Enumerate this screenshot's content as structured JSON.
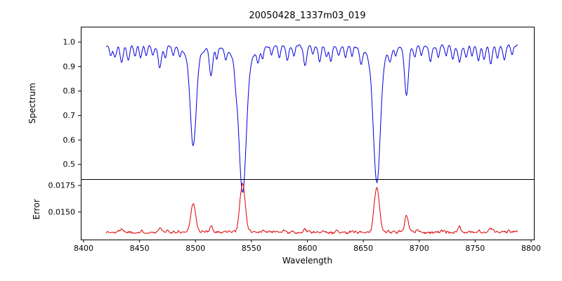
{
  "chart_data": [
    {
      "type": "line",
      "panel": "spectrum",
      "title": "20050428_1337m03_019",
      "xlabel": "Wavelength",
      "ylabel": "Spectrum",
      "xlim": [
        8397.5,
        8802.5
      ],
      "ylim": [
        0.44,
        1.063
      ],
      "xticks": [
        8400,
        8450,
        8500,
        8550,
        8600,
        8650,
        8700,
        8750,
        8800
      ],
      "xtick_labels": [
        "8400",
        "8450",
        "8500",
        "8550",
        "8600",
        "8650",
        "8700",
        "8750",
        "8800"
      ],
      "yticks": [
        0.5,
        0.6,
        0.7,
        0.8,
        0.9,
        1.0
      ],
      "ytick_labels": [
        "0.5",
        "0.6",
        "0.7",
        "0.8",
        "0.9",
        "1.0"
      ],
      "line_color": "#0000dd",
      "x_start": 8420,
      "x_end": 8788,
      "n_points": 560,
      "continuum": 0.985,
      "noise_amplitude": 0.009,
      "seed": 20050428,
      "absorption_lines": [
        [
          8498.0,
          0.36,
          2.6
        ],
        [
          8498.0,
          0.05,
          7.0
        ],
        [
          8542.1,
          0.53,
          3.2
        ],
        [
          8542.1,
          0.07,
          9.0
        ],
        [
          8662.1,
          0.5,
          3.0
        ],
        [
          8662.1,
          0.06,
          8.0
        ],
        [
          8688.6,
          0.21,
          1.7
        ],
        [
          8424,
          0.04,
          1.1
        ],
        [
          8428,
          0.05,
          1.2
        ],
        [
          8434,
          0.07,
          1.3
        ],
        [
          8440,
          0.06,
          1.2
        ],
        [
          8446,
          0.04,
          1.0
        ],
        [
          8451,
          0.05,
          1.1
        ],
        [
          8456,
          0.04,
          1.0
        ],
        [
          8462,
          0.04,
          1.0
        ],
        [
          8468,
          0.09,
          1.4
        ],
        [
          8473,
          0.05,
          1.1
        ],
        [
          8480,
          0.04,
          1.0
        ],
        [
          8486,
          0.03,
          1.0
        ],
        [
          8514,
          0.12,
          1.5
        ],
        [
          8519,
          0.05,
          1.0
        ],
        [
          8527,
          0.04,
          1.0
        ],
        [
          8536,
          0.05,
          1.1
        ],
        [
          8556,
          0.05,
          1.1
        ],
        [
          8560,
          0.04,
          1.0
        ],
        [
          8568,
          0.04,
          1.0
        ],
        [
          8575,
          0.05,
          1.1
        ],
        [
          8582,
          0.06,
          1.2
        ],
        [
          8588,
          0.05,
          1.1
        ],
        [
          8598,
          0.08,
          1.4
        ],
        [
          8605,
          0.04,
          1.0
        ],
        [
          8611,
          0.06,
          1.2
        ],
        [
          8617,
          0.05,
          1.1
        ],
        [
          8621,
          0.06,
          1.2
        ],
        [
          8628,
          0.04,
          1.0
        ],
        [
          8634,
          0.05,
          1.1
        ],
        [
          8640,
          0.04,
          1.0
        ],
        [
          8648,
          0.07,
          1.3
        ],
        [
          8674,
          0.05,
          1.1
        ],
        [
          8679,
          0.04,
          1.0
        ],
        [
          8696,
          0.05,
          1.1
        ],
        [
          8702,
          0.04,
          1.0
        ],
        [
          8710,
          0.06,
          1.2
        ],
        [
          8717,
          0.05,
          1.1
        ],
        [
          8724,
          0.04,
          1.0
        ],
        [
          8730,
          0.05,
          1.1
        ],
        [
          8736,
          0.07,
          1.3
        ],
        [
          8742,
          0.05,
          1.1
        ],
        [
          8747,
          0.04,
          1.0
        ],
        [
          8753,
          0.06,
          1.2
        ],
        [
          8758,
          0.05,
          1.1
        ],
        [
          8764,
          0.07,
          1.3
        ],
        [
          8770,
          0.05,
          1.1
        ],
        [
          8776,
          0.06,
          1.2
        ],
        [
          8783,
          0.04,
          1.0
        ]
      ]
    },
    {
      "type": "line",
      "panel": "error",
      "ylabel": "Error",
      "xlim": [
        8397.5,
        8802.5
      ],
      "ylim": [
        0.0124,
        0.0181
      ],
      "yticks": [
        0.015,
        0.0175
      ],
      "ytick_labels": [
        "0.0150",
        "0.0175"
      ],
      "line_color": "#dd0000",
      "x_start": 8420,
      "x_end": 8788,
      "n_points": 560,
      "baseline": 0.01305,
      "noise_amplitude": 0.00022,
      "seed": 1337,
      "emission_peaks": [
        [
          8498.0,
          0.0027,
          2.2
        ],
        [
          8514.0,
          0.0006,
          1.4
        ],
        [
          8542.1,
          0.0046,
          2.4
        ],
        [
          8662.1,
          0.0043,
          2.3
        ],
        [
          8688.6,
          0.0016,
          1.5
        ],
        [
          8434.0,
          0.0004,
          1.2
        ],
        [
          8468.0,
          0.0004,
          1.2
        ],
        [
          8598.0,
          0.0003,
          1.2
        ],
        [
          8736.0,
          0.0004,
          1.2
        ],
        [
          8764.0,
          0.0004,
          1.2
        ]
      ]
    }
  ]
}
